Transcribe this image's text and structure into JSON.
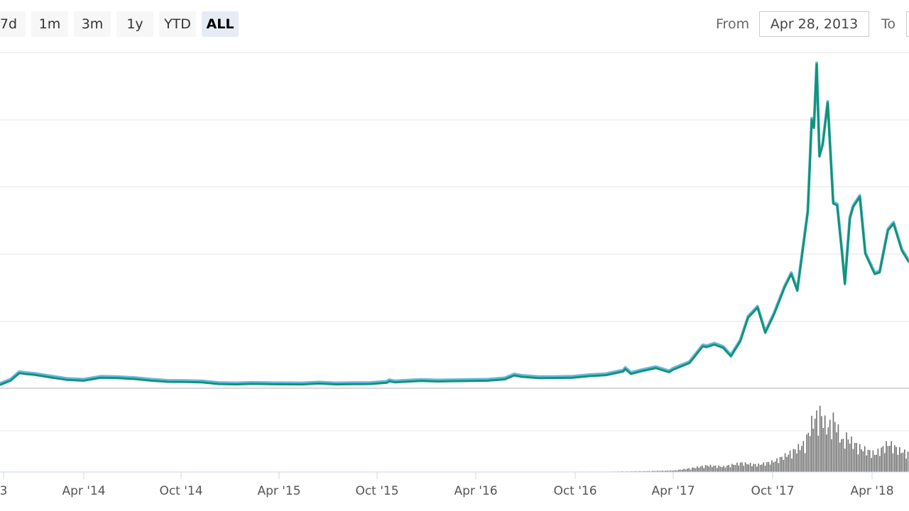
{
  "toolbar": {
    "range_buttons": [
      "7d",
      "1m",
      "3m",
      "1y",
      "YTD",
      "ALL"
    ],
    "selected_range": "ALL",
    "from_label": "From",
    "from_value": "Apr 28, 2013",
    "to_label": "To",
    "to_value": ""
  },
  "colors": {
    "price_line": "#109473",
    "price_shadow": "#4fa9e0",
    "volume_bars": "#6f6f6f",
    "grid": "#e6e6e6",
    "axis": "#ccd6eb",
    "tick_text": "#555555"
  },
  "chart_data": {
    "type": "line",
    "x_ticks": [
      "3",
      "Apr '14",
      "Oct '14",
      "Apr '15",
      "Oct '15",
      "Apr '16",
      "Oct '16",
      "Apr '17",
      "Oct '17",
      "Apr '18"
    ],
    "x_range": [
      "2013-12-01",
      "2018-06-02"
    ],
    "grid": true,
    "series": [
      {
        "values_type": "price",
        "y_range": [
          0,
          20000
        ],
        "points": [
          [
            "2013-12-01",
            200
          ],
          [
            "2013-12-20",
            450
          ],
          [
            "2014-01-05",
            900
          ],
          [
            "2014-01-15",
            850
          ],
          [
            "2014-02-01",
            800
          ],
          [
            "2014-03-01",
            650
          ],
          [
            "2014-04-01",
            500
          ],
          [
            "2014-05-01",
            450
          ],
          [
            "2014-06-01",
            620
          ],
          [
            "2014-07-01",
            600
          ],
          [
            "2014-08-01",
            550
          ],
          [
            "2014-09-01",
            450
          ],
          [
            "2014-10-01",
            380
          ],
          [
            "2014-11-01",
            370
          ],
          [
            "2014-12-01",
            350
          ],
          [
            "2015-01-01",
            250
          ],
          [
            "2015-02-01",
            230
          ],
          [
            "2015-03-01",
            260
          ],
          [
            "2015-04-01",
            240
          ],
          [
            "2015-06-01",
            230
          ],
          [
            "2015-07-01",
            280
          ],
          [
            "2015-08-01",
            230
          ],
          [
            "2015-09-01",
            240
          ],
          [
            "2015-10-01",
            250
          ],
          [
            "2015-11-01",
            330
          ],
          [
            "2015-11-05",
            420
          ],
          [
            "2015-11-15",
            350
          ],
          [
            "2015-12-01",
            380
          ],
          [
            "2016-01-01",
            430
          ],
          [
            "2016-02-01",
            400
          ],
          [
            "2016-03-01",
            420
          ],
          [
            "2016-04-01",
            430
          ],
          [
            "2016-05-01",
            450
          ],
          [
            "2016-06-01",
            530
          ],
          [
            "2016-06-18",
            760
          ],
          [
            "2016-07-01",
            680
          ],
          [
            "2016-08-01",
            600
          ],
          [
            "2016-09-01",
            610
          ],
          [
            "2016-10-01",
            620
          ],
          [
            "2016-11-01",
            720
          ],
          [
            "2016-12-01",
            780
          ],
          [
            "2017-01-01",
            1000
          ],
          [
            "2017-01-05",
            1150
          ],
          [
            "2017-01-15",
            850
          ],
          [
            "2017-02-01",
            1000
          ],
          [
            "2017-03-01",
            1200
          ],
          [
            "2017-03-25",
            950
          ],
          [
            "2017-04-01",
            1100
          ],
          [
            "2017-05-01",
            1500
          ],
          [
            "2017-05-25",
            2500
          ],
          [
            "2017-06-01",
            2450
          ],
          [
            "2017-06-15",
            2600
          ],
          [
            "2017-07-01",
            2400
          ],
          [
            "2017-07-15",
            1900
          ],
          [
            "2017-08-01",
            2800
          ],
          [
            "2017-08-15",
            4200
          ],
          [
            "2017-09-01",
            4800
          ],
          [
            "2017-09-15",
            3300
          ],
          [
            "2017-10-01",
            4400
          ],
          [
            "2017-10-20",
            6000
          ],
          [
            "2017-11-01",
            6800
          ],
          [
            "2017-11-12",
            5800
          ],
          [
            "2017-11-25",
            9000
          ],
          [
            "2017-12-01",
            10500
          ],
          [
            "2017-12-08",
            16000
          ],
          [
            "2017-12-12",
            15500
          ],
          [
            "2017-12-17",
            19300
          ],
          [
            "2017-12-22",
            13800
          ],
          [
            "2017-12-28",
            14500
          ],
          [
            "2018-01-06",
            17000
          ],
          [
            "2018-01-16",
            11000
          ],
          [
            "2018-01-23",
            10900
          ],
          [
            "2018-02-01",
            8000
          ],
          [
            "2018-02-06",
            6200
          ],
          [
            "2018-02-15",
            10100
          ],
          [
            "2018-02-21",
            10800
          ],
          [
            "2018-03-05",
            11400
          ],
          [
            "2018-03-15",
            8000
          ],
          [
            "2018-04-01",
            6800
          ],
          [
            "2018-04-10",
            6900
          ],
          [
            "2018-04-25",
            9400
          ],
          [
            "2018-05-05",
            9800
          ],
          [
            "2018-05-20",
            8200
          ],
          [
            "2018-06-02",
            7500
          ]
        ]
      },
      {
        "values_type": "volume",
        "y_range": [
          0,
          20000000000
        ],
        "points": [
          [
            "2013-12-01",
            0
          ],
          [
            "2016-12-01",
            100000000
          ],
          [
            "2017-02-01",
            200000000
          ],
          [
            "2017-04-01",
            400000000
          ],
          [
            "2017-05-01",
            1000000000
          ],
          [
            "2017-06-01",
            1800000000
          ],
          [
            "2017-07-01",
            1500000000
          ],
          [
            "2017-08-01",
            2500000000
          ],
          [
            "2017-09-01",
            2000000000
          ],
          [
            "2017-10-01",
            3000000000
          ],
          [
            "2017-11-01",
            5500000000
          ],
          [
            "2017-11-25",
            8000000000
          ],
          [
            "2017-12-08",
            14000000000
          ],
          [
            "2017-12-17",
            15500000000
          ],
          [
            "2017-12-22",
            16500000000
          ],
          [
            "2018-01-05",
            12000000000
          ],
          [
            "2018-01-16",
            15000000000
          ],
          [
            "2018-02-01",
            8000000000
          ],
          [
            "2018-02-06",
            10000000000
          ],
          [
            "2018-03-01",
            7000000000
          ],
          [
            "2018-04-01",
            5000000000
          ],
          [
            "2018-04-25",
            8000000000
          ],
          [
            "2018-05-15",
            6000000000
          ],
          [
            "2018-06-02",
            5000000000
          ]
        ]
      }
    ]
  }
}
